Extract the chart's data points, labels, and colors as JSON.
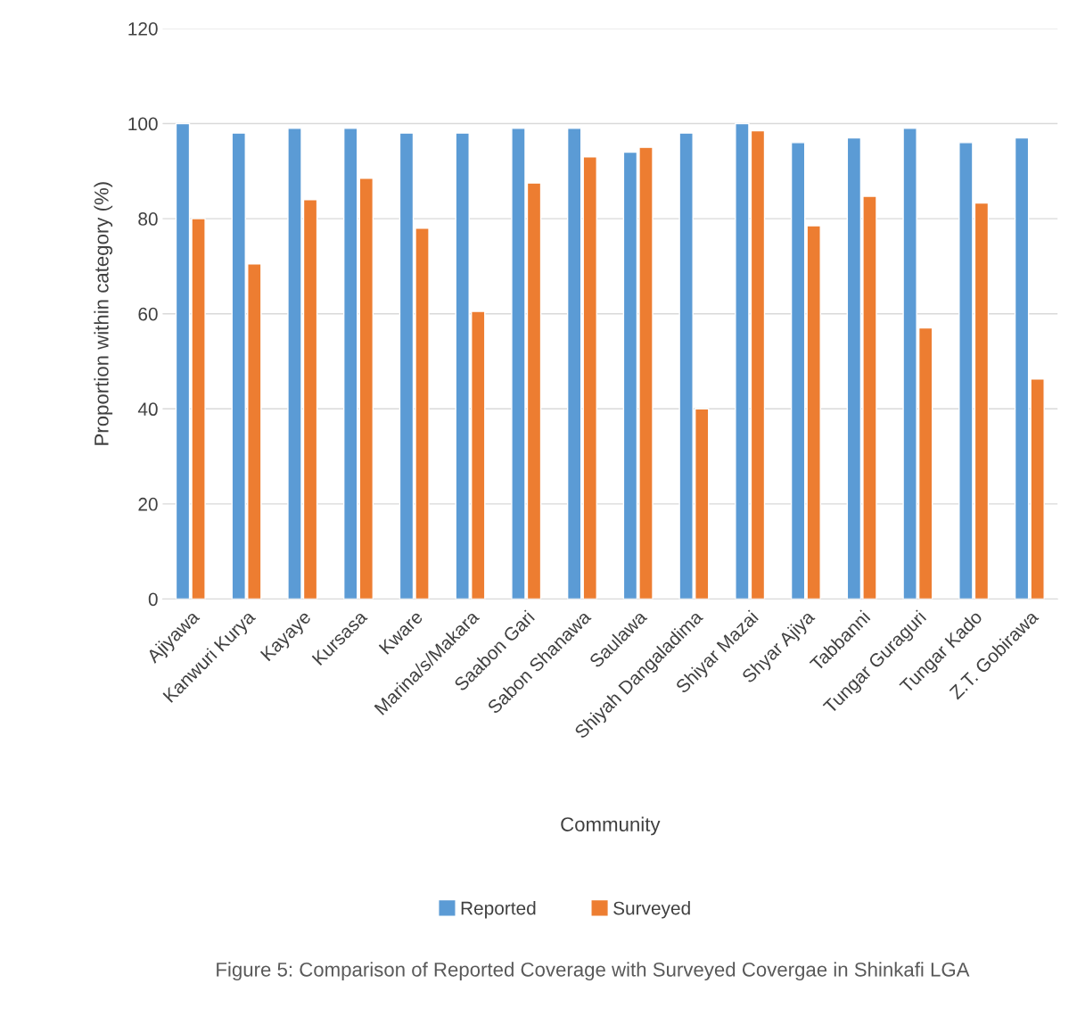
{
  "chart_data": {
    "type": "bar",
    "xlabel": "Community",
    "ylabel": "Proportion within category (%)",
    "categories": [
      "Ajiyawa",
      "Kanwuri Kurya",
      "Kayaye",
      "Kursasa",
      "Kware",
      "Marina/s/Makara",
      "Saabon Gari",
      "Sabon Shanawa",
      "Saulawa",
      "Shiyah Dangaladima",
      "Shiyar Mazai",
      "Shyar Ajiya",
      "Tabbanni",
      "Tungar Guraguri",
      "Tungar Kado",
      "Z.T. Gobirawa"
    ],
    "series": [
      {
        "name": "Reported",
        "color": "#5b9bd5",
        "values": [
          100,
          98,
          99,
          99,
          98,
          98,
          99,
          99,
          94,
          98,
          100,
          96,
          97,
          99,
          96,
          97
        ]
      },
      {
        "name": "Surveyed",
        "color": "#ed7d31",
        "values": [
          80,
          70.5,
          84,
          88.5,
          78,
          60.5,
          87.5,
          93,
          95,
          40,
          98.5,
          78.5,
          84.7,
          57,
          83.3,
          46.3
        ]
      }
    ],
    "ylim": [
      0,
      120
    ],
    "yticks": [
      0,
      20,
      40,
      60,
      80,
      100,
      120
    ],
    "grid": "y",
    "legend": "bottom",
    "annotations": [
      "Figure 5: Comparison of Reported Coverage with Surveyed Covergae in Shinkafi LGA"
    ]
  }
}
